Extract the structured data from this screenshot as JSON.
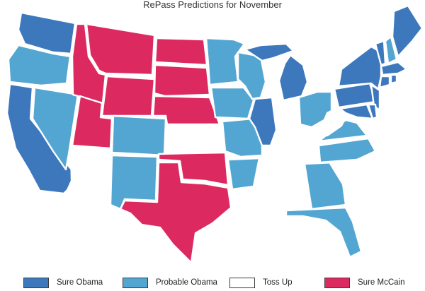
{
  "title": "RePass Predictions for November",
  "colors": {
    "sure_obama": "#3d78bd",
    "probable_obama": "#54a6d2",
    "toss_up": "#ffffff",
    "sure_mccain": "#dc2a60"
  },
  "legend": [
    {
      "key": "sure_obama",
      "label": "Sure Obama"
    },
    {
      "key": "probable_obama",
      "label": "Probable Obama"
    },
    {
      "key": "toss_up",
      "label": "Toss Up"
    },
    {
      "key": "sure_mccain",
      "label": "Sure McCain"
    }
  ],
  "map_regions": [
    {
      "name": "washington",
      "category": "sure_obama"
    },
    {
      "name": "oregon",
      "category": "probable_obama"
    },
    {
      "name": "california",
      "category": "sure_obama"
    },
    {
      "name": "nevada",
      "category": "probable_obama"
    },
    {
      "name": "idaho",
      "category": "sure_mccain"
    },
    {
      "name": "montana",
      "category": "sure_mccain"
    },
    {
      "name": "wyoming",
      "category": "sure_mccain"
    },
    {
      "name": "utah",
      "category": "sure_mccain"
    },
    {
      "name": "arizona",
      "category": "toss_up"
    },
    {
      "name": "colorado",
      "category": "probable_obama"
    },
    {
      "name": "new-mexico",
      "category": "probable_obama"
    },
    {
      "name": "north-dakota",
      "category": "sure_mccain"
    },
    {
      "name": "south-dakota",
      "category": "sure_mccain"
    },
    {
      "name": "nebraska",
      "category": "sure_mccain"
    },
    {
      "name": "kansas",
      "category": "toss_up"
    },
    {
      "name": "oklahoma",
      "category": "sure_mccain"
    },
    {
      "name": "texas",
      "category": "sure_mccain"
    },
    {
      "name": "minnesota",
      "category": "probable_obama"
    },
    {
      "name": "iowa",
      "category": "probable_obama"
    },
    {
      "name": "missouri",
      "category": "probable_obama"
    },
    {
      "name": "arkansas",
      "category": "probable_obama"
    },
    {
      "name": "louisiana",
      "category": "toss_up"
    },
    {
      "name": "wisconsin",
      "category": "probable_obama"
    },
    {
      "name": "michigan",
      "category": "sure_obama"
    },
    {
      "name": "michigan-upper",
      "category": "sure_obama"
    },
    {
      "name": "illinois",
      "category": "sure_obama"
    },
    {
      "name": "indiana",
      "category": "toss_up"
    },
    {
      "name": "ohio",
      "category": "probable_obama"
    },
    {
      "name": "kentucky",
      "category": "toss_up"
    },
    {
      "name": "tennessee",
      "category": "toss_up"
    },
    {
      "name": "mississippi",
      "category": "toss_up"
    },
    {
      "name": "alabama",
      "category": "toss_up"
    },
    {
      "name": "georgia",
      "category": "probable_obama"
    },
    {
      "name": "florida",
      "category": "probable_obama"
    },
    {
      "name": "south-carolina",
      "category": "toss_up"
    },
    {
      "name": "north-carolina",
      "category": "probable_obama"
    },
    {
      "name": "virginia",
      "category": "probable_obama"
    },
    {
      "name": "west-virginia",
      "category": "toss_up"
    },
    {
      "name": "pennsylvania",
      "category": "sure_obama"
    },
    {
      "name": "new-york",
      "category": "sure_obama"
    },
    {
      "name": "new-jersey",
      "category": "sure_obama"
    },
    {
      "name": "maryland",
      "category": "sure_obama"
    },
    {
      "name": "delaware",
      "category": "sure_obama"
    },
    {
      "name": "connecticut",
      "category": "sure_obama"
    },
    {
      "name": "rhode-island",
      "category": "sure_obama"
    },
    {
      "name": "massachusetts",
      "category": "sure_obama"
    },
    {
      "name": "vermont",
      "category": "sure_obama"
    },
    {
      "name": "new-hampshire",
      "category": "probable_obama"
    },
    {
      "name": "maine",
      "category": "sure_obama"
    }
  ]
}
